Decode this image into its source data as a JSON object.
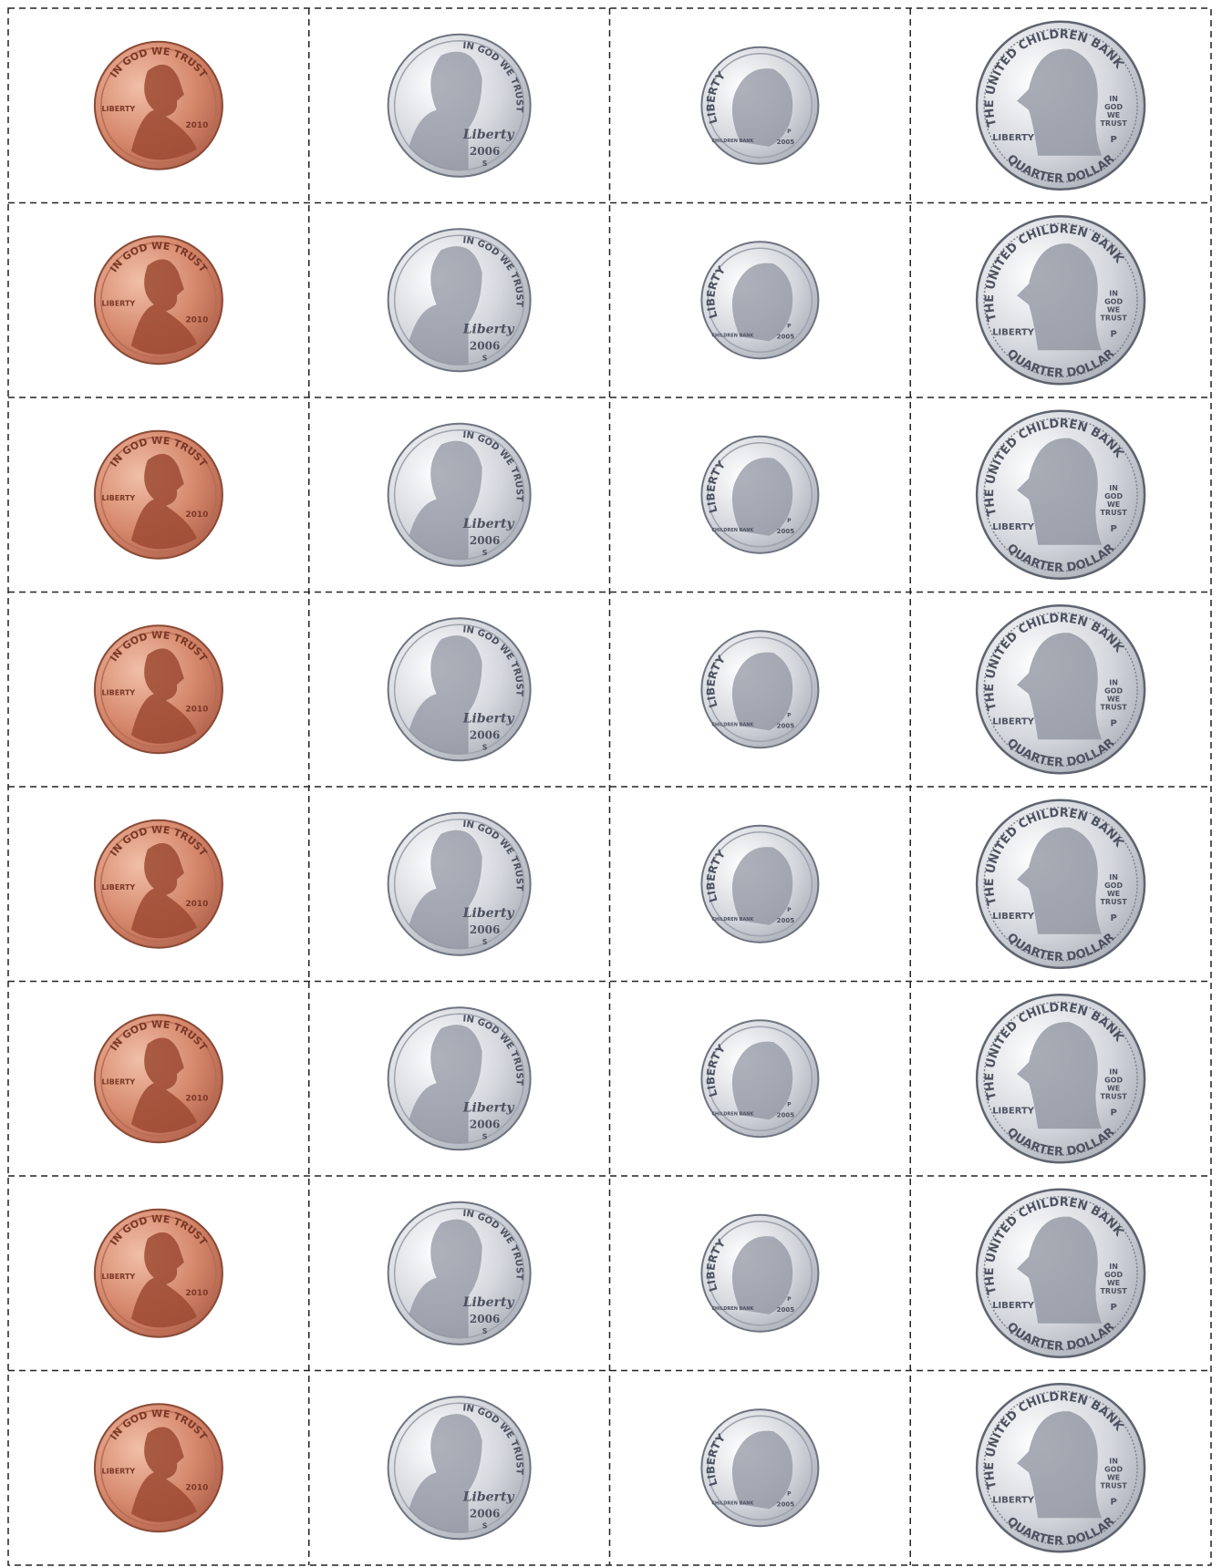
{
  "coins": [
    {
      "motto": "IN GOD WE TRUST",
      "left": "LIBERTY",
      "year": "2010"
    },
    {
      "motto": "IN GOD WE TRUST",
      "signature": "Liberty",
      "year": "2006",
      "mint": "S"
    },
    {
      "motto": "LIBERTY",
      "bank": "CHILDREN BANK",
      "year": "2005",
      "mint": "P"
    },
    {
      "top": "THE UNITED CHILDREN BANK",
      "motto": "IN GOD WE TRUST",
      "left": "LIBERTY",
      "mint": "P",
      "bottom": "QUARTER DOLLAR"
    }
  ]
}
